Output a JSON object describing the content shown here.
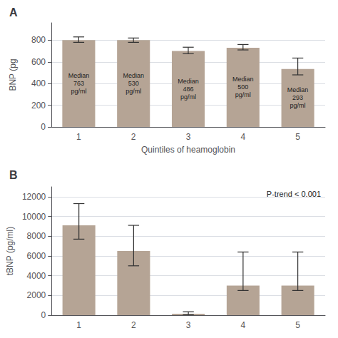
{
  "chart_data": [
    {
      "type": "bar",
      "title": "A",
      "categories": [
        "1",
        "2",
        "3",
        "4",
        "5"
      ],
      "values": [
        800,
        800,
        700,
        730,
        535
      ],
      "error_plus": [
        30,
        20,
        35,
        30,
        100
      ],
      "error_minus": [
        20,
        20,
        25,
        20,
        55
      ],
      "bar_labels": [
        "Median\n763\npg/ml",
        "Median\n530\npg/ml",
        "Median\n486\npg/ml",
        "Median\n500\npg/ml",
        "Median\n293\npg/ml"
      ],
      "ylabel": "BNP (pg",
      "xlabel": "Quintiles of heamoglobin",
      "ylim": [
        0,
        960
      ],
      "yticks": [
        0,
        200,
        400,
        600,
        800
      ],
      "color": "#b5a495",
      "grid": true
    },
    {
      "type": "bar",
      "title": "B",
      "categories": [
        "1",
        "2",
        "3",
        "4",
        "5"
      ],
      "values": [
        9100,
        6500,
        150,
        3000,
        3000
      ],
      "error_plus": [
        2200,
        2600,
        200,
        3400,
        3400
      ],
      "error_minus": [
        1400,
        1500,
        100,
        500,
        500
      ],
      "ylabel": "tBNP (pg/ml)",
      "ylim": [
        0,
        13000
      ],
      "yticks": [
        0,
        2000,
        4000,
        6000,
        8000,
        10000,
        12000
      ],
      "color": "#b5a495",
      "grid": true,
      "annotation": "P-trend < 0.001"
    }
  ]
}
